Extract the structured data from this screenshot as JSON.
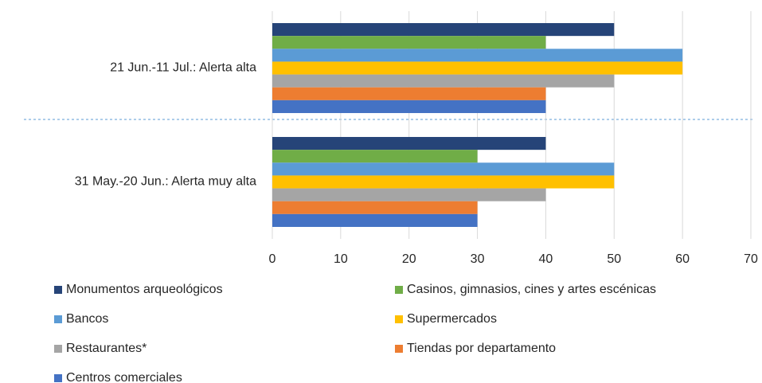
{
  "chart_data": {
    "type": "hbar",
    "categories": [
      "21 Jun.-11 Jul.: Alerta alta",
      "31 May.-20 Jun.: Alerta muy alta"
    ],
    "series": [
      {
        "name": "Monumentos arqueológicos",
        "color": "#264478",
        "values": [
          50,
          40
        ]
      },
      {
        "name": "Casinos, gimnasios, cines y artes escénicas",
        "color": "#70ad47",
        "values": [
          40,
          30
        ]
      },
      {
        "name": "Bancos",
        "color": "#5b9bd5",
        "values": [
          60,
          50
        ]
      },
      {
        "name": "Supermercados",
        "color": "#ffc000",
        "values": [
          60,
          50
        ]
      },
      {
        "name": "Restaurantes*",
        "color": "#a5a5a5",
        "values": [
          50,
          40
        ]
      },
      {
        "name": "Tiendas por departamento",
        "color": "#ed7d31",
        "values": [
          40,
          30
        ]
      },
      {
        "name": "Centros comerciales",
        "color": "#4472c4",
        "values": [
          40,
          30
        ]
      }
    ],
    "xlim": [
      0,
      70
    ],
    "xticks": [
      0,
      10,
      20,
      30,
      40,
      50,
      60,
      70
    ],
    "grid": true
  }
}
